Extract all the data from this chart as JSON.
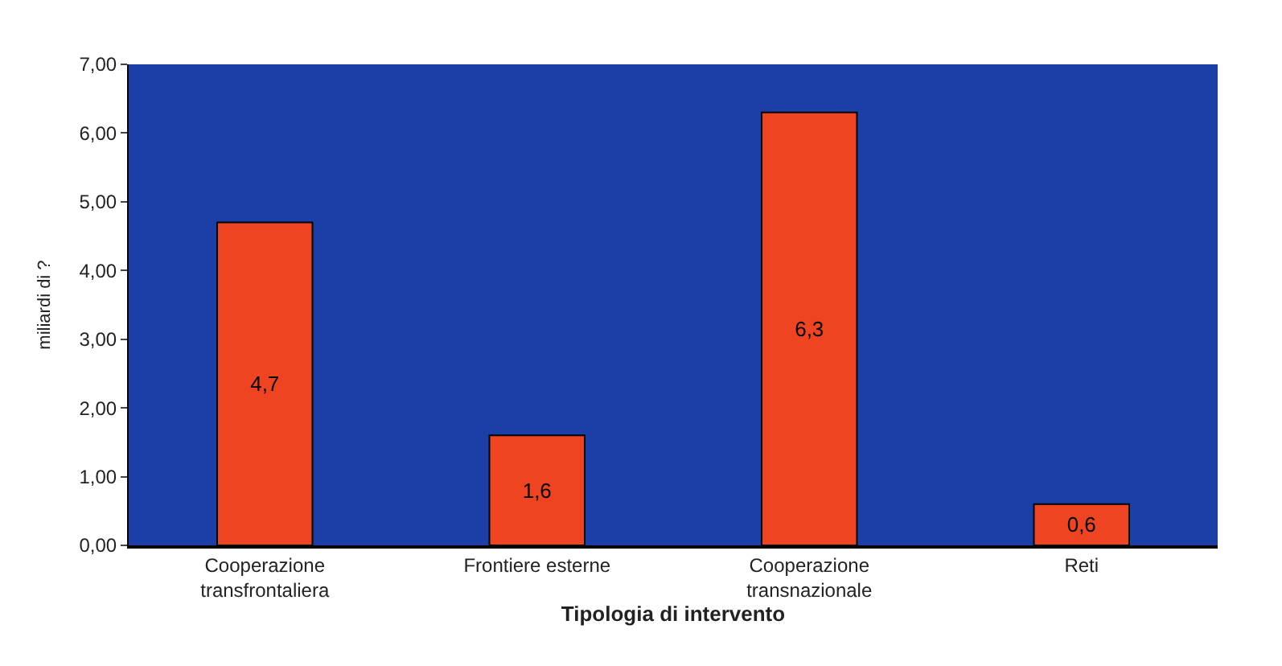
{
  "chart_data": {
    "type": "bar",
    "xlabel": "Tipologia di intervento",
    "ylabel": "miliardi di ?",
    "categories": [
      "Cooperazione\ntransfrontaliera",
      "Frontiere esterne",
      "Cooperazione\ntransnazionale",
      "Reti"
    ],
    "values": [
      4.7,
      1.6,
      6.3,
      0.6
    ],
    "value_labels": [
      "4,7",
      "1,6",
      "6,3",
      "0,6"
    ],
    "color": "#ee4422",
    "ylim": [
      0,
      7
    ],
    "yticks": [
      {
        "value": 0,
        "label": "0,00"
      },
      {
        "value": 1,
        "label": "1,00"
      },
      {
        "value": 2,
        "label": "2,00"
      },
      {
        "value": 3,
        "label": "3,00"
      },
      {
        "value": 4,
        "label": "4,00"
      },
      {
        "value": 5,
        "label": "5,00"
      },
      {
        "value": 6,
        "label": "6,00"
      },
      {
        "value": 7,
        "label": "7,00"
      }
    ],
    "grid": false,
    "legend": false
  }
}
